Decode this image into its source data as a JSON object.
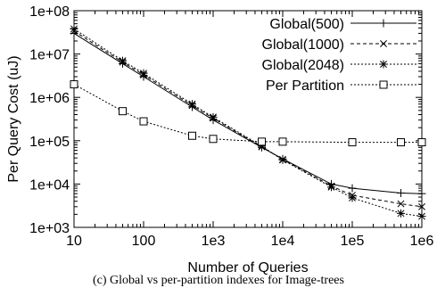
{
  "chart_data": {
    "type": "line",
    "title": "",
    "xlabel": "Number of Queries",
    "ylabel": "Per Query Cost (uJ)",
    "x_scale": "log",
    "y_scale": "log",
    "xlim": [
      10,
      1000000
    ],
    "ylim": [
      1000,
      100000000
    ],
    "x_ticks": [
      {
        "value": 10,
        "label": "10"
      },
      {
        "value": 100,
        "label": "100"
      },
      {
        "value": 1000,
        "label": "1e3"
      },
      {
        "value": 10000,
        "label": "1e4"
      },
      {
        "value": 100000,
        "label": "1e5"
      },
      {
        "value": 1000000,
        "label": "1e6"
      }
    ],
    "y_ticks": [
      {
        "value": 1000,
        "label": "1e+03"
      },
      {
        "value": 10000,
        "label": "1e+04"
      },
      {
        "value": 100000,
        "label": "1e+05"
      },
      {
        "value": 1000000,
        "label": "1e+06"
      },
      {
        "value": 10000000,
        "label": "1e+07"
      },
      {
        "value": 100000000,
        "label": "1e+08"
      }
    ],
    "grid": false,
    "legend_position": "top-right",
    "series": [
      {
        "name": "Global(500)",
        "marker": "plus",
        "dash": "solid",
        "x": [
          10,
          50,
          100,
          500,
          1000,
          5000,
          10000,
          50000,
          100000,
          500000,
          1000000
        ],
        "y": [
          30000000,
          6000000,
          3000000,
          600000,
          300000,
          70000,
          38000,
          10000,
          8000,
          6200,
          6000
        ]
      },
      {
        "name": "Global(1000)",
        "marker": "cross",
        "dash": "dashed",
        "x": [
          10,
          50,
          100,
          500,
          1000,
          5000,
          10000,
          50000,
          100000,
          500000,
          1000000
        ],
        "y": [
          34000000,
          6500000,
          3300000,
          650000,
          330000,
          72000,
          37000,
          9000,
          5500,
          3500,
          3000
        ]
      },
      {
        "name": "Global(2048)",
        "marker": "star",
        "dash": "dotted",
        "x": [
          10,
          50,
          100,
          500,
          1000,
          5000,
          10000,
          50000,
          100000,
          500000,
          1000000
        ],
        "y": [
          38000000,
          7000000,
          3600000,
          700000,
          350000,
          75000,
          36000,
          8500,
          4800,
          2100,
          1800
        ]
      },
      {
        "name": "Per Partition",
        "marker": "square",
        "dash": "dotted",
        "x": [
          10,
          50,
          100,
          500,
          1000,
          5000,
          10000,
          100000,
          500000,
          1000000
        ],
        "y": [
          2000000,
          480000,
          280000,
          130000,
          110000,
          95000,
          95000,
          92000,
          92000,
          92000
        ]
      }
    ]
  },
  "caption": "(c) Global vs per-partition indexes for Image-trees"
}
